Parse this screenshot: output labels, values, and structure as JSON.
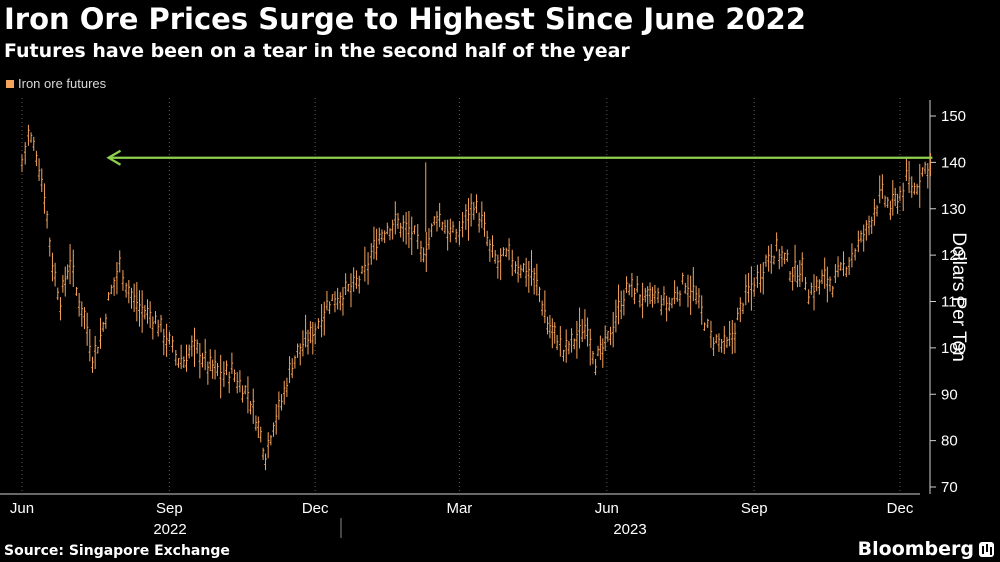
{
  "header": {
    "title": "Iron Ore Prices Surge to Highest Since June 2022",
    "subtitle": "Futures have been on a tear in the second half of the year"
  },
  "legend": {
    "label": "Iron ore futures",
    "color": "#f5a45d"
  },
  "footer": {
    "source": "Source: Singapore Exchange",
    "brand": "Bloomberg"
  },
  "colors": {
    "background": "#000000",
    "series": "#f5a45d",
    "arrow": "#8fd14f",
    "grid": "#5a5a5a"
  },
  "chart_data": {
    "type": "line",
    "title": "Iron Ore Prices Surge to Highest Since June 2022",
    "subtitle": "Futures have been on a tear in the second half of the year",
    "ylabel": "Dollars Per Ton",
    "ylim": [
      70,
      150
    ],
    "yticks": [
      70,
      80,
      90,
      100,
      110,
      120,
      130,
      140,
      150
    ],
    "y_axis_side": "right",
    "grid": "vertical dotted at month ticks",
    "legend_position": "top-left",
    "x_month_labels": [
      {
        "label": "Jun",
        "date": "2022-06"
      },
      {
        "label": "Sep",
        "date": "2022-09"
      },
      {
        "label": "Dec",
        "date": "2022-12"
      },
      {
        "label": "Mar",
        "date": "2023-03"
      },
      {
        "label": "Jun",
        "date": "2023-06"
      },
      {
        "label": "Sep",
        "date": "2023-09"
      },
      {
        "label": "Dec",
        "date": "2023-12"
      }
    ],
    "x_year_labels": [
      "2022",
      "2023"
    ],
    "series": [
      {
        "name": "Iron ore futures",
        "color": "#f5a45d",
        "points": [
          [
            "2022-06-01",
            140
          ],
          [
            "2022-06-05",
            146
          ],
          [
            "2022-06-10",
            142
          ],
          [
            "2022-06-15",
            133
          ],
          [
            "2022-06-20",
            118
          ],
          [
            "2022-06-25",
            110
          ],
          [
            "2022-07-01",
            119
          ],
          [
            "2022-07-05",
            112
          ],
          [
            "2022-07-10",
            107
          ],
          [
            "2022-07-15",
            98
          ],
          [
            "2022-07-20",
            102
          ],
          [
            "2022-07-25",
            110
          ],
          [
            "2022-08-01",
            118
          ],
          [
            "2022-08-05",
            114
          ],
          [
            "2022-08-10",
            110
          ],
          [
            "2022-08-15",
            108
          ],
          [
            "2022-08-20",
            107
          ],
          [
            "2022-08-25",
            105
          ],
          [
            "2022-09-01",
            101
          ],
          [
            "2022-09-05",
            98
          ],
          [
            "2022-09-10",
            97
          ],
          [
            "2022-09-15",
            100
          ],
          [
            "2022-09-20",
            99
          ],
          [
            "2022-09-25",
            96
          ],
          [
            "2022-10-01",
            95
          ],
          [
            "2022-10-05",
            94
          ],
          [
            "2022-10-10",
            95
          ],
          [
            "2022-10-15",
            92
          ],
          [
            "2022-10-20",
            90
          ],
          [
            "2022-10-25",
            85
          ],
          [
            "2022-10-31",
            77
          ],
          [
            "2022-11-05",
            84
          ],
          [
            "2022-11-10",
            88
          ],
          [
            "2022-11-15",
            95
          ],
          [
            "2022-11-20",
            99
          ],
          [
            "2022-11-25",
            101
          ],
          [
            "2022-12-01",
            104
          ],
          [
            "2022-12-05",
            107
          ],
          [
            "2022-12-10",
            110
          ],
          [
            "2022-12-15",
            111
          ],
          [
            "2022-12-20",
            112
          ],
          [
            "2022-12-25",
            113
          ],
          [
            "2023-01-01",
            116
          ],
          [
            "2023-01-05",
            120
          ],
          [
            "2023-01-10",
            124
          ],
          [
            "2023-01-15",
            126
          ],
          [
            "2023-01-20",
            127
          ],
          [
            "2023-01-25",
            126
          ],
          [
            "2023-02-01",
            124
          ],
          [
            "2023-02-05",
            120
          ],
          [
            "2023-02-10",
            123
          ],
          [
            "2023-02-15",
            129
          ],
          [
            "2023-02-20",
            126
          ],
          [
            "2023-02-25",
            124
          ],
          [
            "2023-03-01",
            125
          ],
          [
            "2023-03-05",
            128
          ],
          [
            "2023-03-10",
            131
          ],
          [
            "2023-03-15",
            127
          ],
          [
            "2023-03-20",
            121
          ],
          [
            "2023-03-25",
            118
          ],
          [
            "2023-04-01",
            120
          ],
          [
            "2023-04-05",
            118
          ],
          [
            "2023-04-10",
            117
          ],
          [
            "2023-04-15",
            116
          ],
          [
            "2023-04-20",
            112
          ],
          [
            "2023-04-25",
            105
          ],
          [
            "2023-05-01",
            102
          ],
          [
            "2023-05-05",
            99
          ],
          [
            "2023-05-10",
            101
          ],
          [
            "2023-05-15",
            103
          ],
          [
            "2023-05-20",
            105
          ],
          [
            "2023-05-25",
            97
          ],
          [
            "2023-05-31",
            100
          ],
          [
            "2023-06-05",
            105
          ],
          [
            "2023-06-10",
            110
          ],
          [
            "2023-06-15",
            113
          ],
          [
            "2023-06-20",
            112
          ],
          [
            "2023-06-25",
            110
          ],
          [
            "2023-07-01",
            111
          ],
          [
            "2023-07-05",
            110
          ],
          [
            "2023-07-10",
            109
          ],
          [
            "2023-07-15",
            112
          ],
          [
            "2023-07-20",
            114
          ],
          [
            "2023-07-25",
            112
          ],
          [
            "2023-08-01",
            106
          ],
          [
            "2023-08-05",
            102
          ],
          [
            "2023-08-10",
            101
          ],
          [
            "2023-08-15",
            100
          ],
          [
            "2023-08-20",
            104
          ],
          [
            "2023-08-25",
            110
          ],
          [
            "2023-09-01",
            114
          ],
          [
            "2023-09-05",
            116
          ],
          [
            "2023-09-10",
            120
          ],
          [
            "2023-09-15",
            121
          ],
          [
            "2023-09-20",
            119
          ],
          [
            "2023-09-25",
            116
          ],
          [
            "2023-10-01",
            117
          ],
          [
            "2023-10-05",
            112
          ],
          [
            "2023-10-10",
            113
          ],
          [
            "2023-10-15",
            115
          ],
          [
            "2023-10-20",
            114
          ],
          [
            "2023-10-25",
            116
          ],
          [
            "2023-11-01",
            120
          ],
          [
            "2023-11-05",
            122
          ],
          [
            "2023-11-10",
            125
          ],
          [
            "2023-11-15",
            130
          ],
          [
            "2023-11-20",
            133
          ],
          [
            "2023-11-25",
            130
          ],
          [
            "2023-12-01",
            133
          ],
          [
            "2023-12-05",
            136
          ],
          [
            "2023-12-10",
            134
          ],
          [
            "2023-12-15",
            138
          ],
          [
            "2023-12-20",
            140
          ]
        ]
      }
    ],
    "annotations": [
      {
        "type": "arrow",
        "direction": "left",
        "y": 141,
        "x_start": "2023-12-20",
        "x_end": "2022-07-25",
        "color": "#8fd14f"
      }
    ]
  }
}
